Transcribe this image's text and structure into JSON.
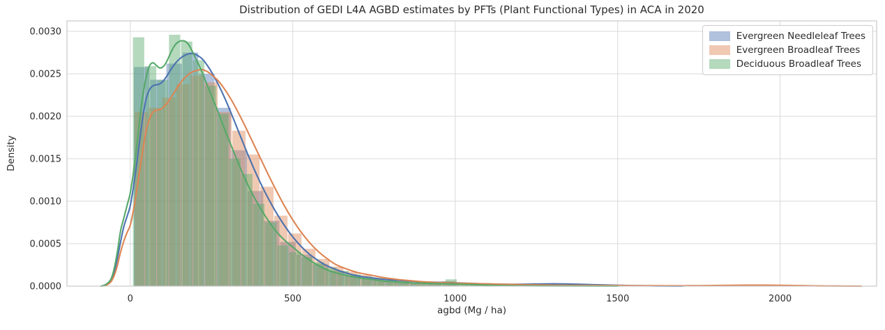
{
  "chart_data": {
    "type": "histogram+kde",
    "title": "Distribution of GEDI L4A AGBD estimates by PFTs (Plant Functional Types) in ACA in 2020",
    "xlabel": "agbd (Mg / ha)",
    "ylabel": "Density",
    "xlim": [
      -195,
      2297
    ],
    "ylim": [
      0,
      0.003123
    ],
    "xticks": [
      0,
      500,
      1000,
      1500,
      2000
    ],
    "xtick_labels": [
      "0",
      "500",
      "1000",
      "1500",
      "2000"
    ],
    "yticks": [
      0,
      0.0005,
      0.001,
      0.0015,
      0.002,
      0.0025,
      0.003
    ],
    "ytick_labels": [
      "0.0000",
      "0.0005",
      "0.0010",
      "0.0015",
      "0.0020",
      "0.0025",
      "0.0030"
    ],
    "grid": true,
    "grid_color": "#d9d9d9",
    "spine_color": "#c9c9c9",
    "text_color": "#2b2b2b",
    "legend_position": "upper right",
    "series": [
      {
        "name": "Evergreen Needleleaf Trees",
        "line_color": "#4c72b0",
        "fill_color": "rgba(76,114,176,0.44)",
        "bin_width": 50,
        "bars": [
          [
            10,
            0.00258
          ],
          [
            60,
            0.00243
          ],
          [
            110,
            0.00262
          ],
          [
            160,
            0.00275
          ],
          [
            210,
            0.0025
          ],
          [
            260,
            0.0021
          ],
          [
            310,
            0.0016
          ],
          [
            360,
            0.00112
          ],
          [
            410,
            0.00077
          ],
          [
            460,
            0.00052
          ],
          [
            510,
            0.00037
          ],
          [
            560,
            0.00026
          ],
          [
            610,
            0.00018
          ],
          [
            660,
            0.00013
          ],
          [
            710,
            9e-05
          ],
          [
            760,
            6.5e-05
          ],
          [
            810,
            5e-05
          ],
          [
            860,
            3.5e-05
          ],
          [
            910,
            2.5e-05
          ],
          [
            960,
            2e-05
          ]
        ],
        "kde": [
          [
            -90,
            0
          ],
          [
            -75,
            2e-05
          ],
          [
            -60,
            7e-05
          ],
          [
            -50,
            0.00016
          ],
          [
            -40,
            0.00032
          ],
          [
            -30,
            0.00052
          ],
          [
            -20,
            0.0007
          ],
          [
            -10,
            0.00082
          ],
          [
            0,
            0.00095
          ],
          [
            10,
            0.00118
          ],
          [
            20,
            0.00145
          ],
          [
            30,
            0.00175
          ],
          [
            40,
            0.00203
          ],
          [
            50,
            0.00222
          ],
          [
            60,
            0.00232
          ],
          [
            70,
            0.00236
          ],
          [
            80,
            0.00237
          ],
          [
            90,
            0.00238
          ],
          [
            100,
            0.00241
          ],
          [
            110,
            0.00246
          ],
          [
            120,
            0.00252
          ],
          [
            130,
            0.00258
          ],
          [
            140,
            0.00263
          ],
          [
            150,
            0.00267
          ],
          [
            160,
            0.0027
          ],
          [
            175,
            0.00273
          ],
          [
            190,
            0.00274
          ],
          [
            205,
            0.00272
          ],
          [
            220,
            0.00268
          ],
          [
            235,
            0.00261
          ],
          [
            250,
            0.00252
          ],
          [
            270,
            0.00238
          ],
          [
            290,
            0.00222
          ],
          [
            310,
            0.00204
          ],
          [
            330,
            0.00185
          ],
          [
            350,
            0.00166
          ],
          [
            375,
            0.00143
          ],
          [
            400,
            0.00122
          ],
          [
            425,
            0.00103
          ],
          [
            450,
            0.00086
          ],
          [
            475,
            0.00071
          ],
          [
            500,
            0.00058
          ],
          [
            525,
            0.00047
          ],
          [
            550,
            0.00038
          ],
          [
            575,
            0.00031
          ],
          [
            600,
            0.00025
          ],
          [
            630,
            0.0002
          ],
          [
            660,
            0.00016
          ],
          [
            700,
            0.00012
          ],
          [
            740,
            0.0001
          ],
          [
            780,
            8e-05
          ],
          [
            820,
            7e-05
          ],
          [
            860,
            6e-05
          ],
          [
            900,
            5e-05
          ],
          [
            950,
            4.5e-05
          ],
          [
            1000,
            4e-05
          ],
          [
            1050,
            3.2e-05
          ],
          [
            1100,
            2.6e-05
          ],
          [
            1150,
            2.2e-05
          ],
          [
            1200,
            2.2e-05
          ],
          [
            1250,
            2.5e-05
          ],
          [
            1300,
            2.7e-05
          ],
          [
            1350,
            2.5e-05
          ],
          [
            1400,
            2e-05
          ],
          [
            1450,
            1.5e-05
          ],
          [
            1500,
            1e-05
          ],
          [
            1550,
            6e-06
          ],
          [
            1600,
            3e-06
          ],
          [
            1650,
            1e-06
          ],
          [
            1700,
            0
          ]
        ]
      },
      {
        "name": "Evergreen Broadleaf Trees",
        "line_color": "#dd8452",
        "fill_color": "rgba(221,132,82,0.44)",
        "bin_width": 43,
        "bars": [
          [
            12,
            0.00205
          ],
          [
            55,
            0.0021
          ],
          [
            98,
            0.00222
          ],
          [
            141,
            0.00238
          ],
          [
            184,
            0.00248
          ],
          [
            227,
            0.0024
          ],
          [
            270,
            0.00205
          ],
          [
            313,
            0.00183
          ],
          [
            356,
            0.00155
          ],
          [
            399,
            0.00117
          ],
          [
            442,
            0.00083
          ],
          [
            485,
            0.00062
          ],
          [
            528,
            0.00044
          ],
          [
            571,
            0.00032
          ],
          [
            614,
            0.00023
          ],
          [
            657,
            0.00017
          ],
          [
            700,
            0.00013
          ],
          [
            743,
            0.0001
          ],
          [
            786,
            8e-05
          ],
          [
            829,
            6e-05
          ],
          [
            872,
            5e-05
          ],
          [
            915,
            4e-05
          ],
          [
            958,
            6e-05
          ],
          [
            1001,
            3e-05
          ],
          [
            1044,
            2e-05
          ],
          [
            1087,
            1.5e-05
          ],
          [
            1896,
            1.5e-05
          ],
          [
            1939,
            1e-05
          ]
        ],
        "kde": [
          [
            -90,
            0
          ],
          [
            -75,
            1e-05
          ],
          [
            -60,
            5e-05
          ],
          [
            -50,
            0.00012
          ],
          [
            -40,
            0.00024
          ],
          [
            -30,
            0.0004
          ],
          [
            -20,
            0.00053
          ],
          [
            -10,
            0.00063
          ],
          [
            0,
            0.00072
          ],
          [
            10,
            0.0009
          ],
          [
            20,
            0.00113
          ],
          [
            30,
            0.00139
          ],
          [
            40,
            0.00164
          ],
          [
            50,
            0.00185
          ],
          [
            60,
            0.00198
          ],
          [
            70,
            0.00205
          ],
          [
            80,
            0.00207
          ],
          [
            90,
            0.00208
          ],
          [
            100,
            0.0021
          ],
          [
            110,
            0.00214
          ],
          [
            120,
            0.00219
          ],
          [
            130,
            0.00225
          ],
          [
            140,
            0.00231
          ],
          [
            150,
            0.00237
          ],
          [
            160,
            0.00242
          ],
          [
            175,
            0.00248
          ],
          [
            190,
            0.00252
          ],
          [
            205,
            0.00254
          ],
          [
            220,
            0.00255
          ],
          [
            235,
            0.00253
          ],
          [
            250,
            0.00249
          ],
          [
            270,
            0.00242
          ],
          [
            290,
            0.00232
          ],
          [
            310,
            0.0022
          ],
          [
            330,
            0.00206
          ],
          [
            350,
            0.00191
          ],
          [
            375,
            0.00171
          ],
          [
            400,
            0.00151
          ],
          [
            425,
            0.00131
          ],
          [
            450,
            0.00112
          ],
          [
            475,
            0.00094
          ],
          [
            500,
            0.00078
          ],
          [
            525,
            0.00064
          ],
          [
            550,
            0.00052
          ],
          [
            575,
            0.00042
          ],
          [
            600,
            0.00034
          ],
          [
            630,
            0.00026
          ],
          [
            660,
            0.00021
          ],
          [
            700,
            0.00016
          ],
          [
            740,
            0.00013
          ],
          [
            780,
            0.0001
          ],
          [
            820,
            8e-05
          ],
          [
            860,
            6.5e-05
          ],
          [
            900,
            5.2e-05
          ],
          [
            950,
            4.2e-05
          ],
          [
            1000,
            3.7e-05
          ],
          [
            1050,
            3.1e-05
          ],
          [
            1100,
            2.6e-05
          ],
          [
            1150,
            2.2e-05
          ],
          [
            1200,
            1.8e-05
          ],
          [
            1250,
            1.5e-05
          ],
          [
            1300,
            1.2e-05
          ],
          [
            1350,
            1e-05
          ],
          [
            1400,
            9e-06
          ],
          [
            1450,
            8e-06
          ],
          [
            1500,
            7e-06
          ],
          [
            1550,
            6e-06
          ],
          [
            1600,
            6e-06
          ],
          [
            1650,
            5e-06
          ],
          [
            1700,
            5e-06
          ],
          [
            1750,
            6e-06
          ],
          [
            1800,
            8e-06
          ],
          [
            1850,
            1e-05
          ],
          [
            1900,
            1.2e-05
          ],
          [
            1950,
            1.2e-05
          ],
          [
            2000,
            1e-05
          ],
          [
            2050,
            7e-06
          ],
          [
            2100,
            4e-06
          ],
          [
            2150,
            2e-06
          ],
          [
            2200,
            1e-06
          ],
          [
            2250,
            0
          ]
        ]
      },
      {
        "name": "Deciduous Broadleaf Trees",
        "line_color": "#55a868",
        "fill_color": "rgba(85,168,104,0.44)",
        "bin_width": 37,
        "bars": [
          [
            7,
            0.00293
          ],
          [
            44,
            0.00259
          ],
          [
            81,
            0.00243
          ],
          [
            118,
            0.00296
          ],
          [
            155,
            0.00288
          ],
          [
            192,
            0.00266
          ],
          [
            229,
            0.00236
          ],
          [
            266,
            0.00203
          ],
          [
            303,
            0.0015
          ],
          [
            340,
            0.00132
          ],
          [
            377,
            0.00097
          ],
          [
            414,
            0.00075
          ],
          [
            451,
            0.00048
          ],
          [
            488,
            0.0004
          ],
          [
            525,
            0.00034
          ],
          [
            562,
            0.00028
          ],
          [
            599,
            0.00022
          ],
          [
            636,
            0.00018
          ],
          [
            673,
            0.00014
          ],
          [
            710,
            0.00011
          ],
          [
            747,
            9e-05
          ],
          [
            784,
            7e-05
          ],
          [
            821,
            5.5e-05
          ],
          [
            858,
            4.5e-05
          ],
          [
            895,
            3.5e-05
          ],
          [
            932,
            5e-05
          ],
          [
            969,
            8e-05
          ],
          [
            1006,
            3e-05
          ],
          [
            1043,
            2e-05
          ]
        ],
        "kde": [
          [
            -90,
            0
          ],
          [
            -75,
            2e-05
          ],
          [
            -60,
            8e-05
          ],
          [
            -50,
            0.0002
          ],
          [
            -40,
            0.0004
          ],
          [
            -30,
            0.00065
          ],
          [
            -20,
            0.0008
          ],
          [
            -10,
            0.00095
          ],
          [
            0,
            0.0011
          ],
          [
            10,
            0.00135
          ],
          [
            20,
            0.00165
          ],
          [
            30,
            0.002
          ],
          [
            40,
            0.00228
          ],
          [
            50,
            0.00248
          ],
          [
            60,
            0.0026
          ],
          [
            70,
            0.00263
          ],
          [
            80,
            0.0026
          ],
          [
            90,
            0.00257
          ],
          [
            100,
            0.00258
          ],
          [
            110,
            0.00263
          ],
          [
            120,
            0.00271
          ],
          [
            130,
            0.00279
          ],
          [
            140,
            0.00285
          ],
          [
            150,
            0.00288
          ],
          [
            160,
            0.00289
          ],
          [
            170,
            0.00288
          ],
          [
            180,
            0.00284
          ],
          [
            190,
            0.00277
          ],
          [
            200,
            0.00269
          ],
          [
            215,
            0.00257
          ],
          [
            230,
            0.00243
          ],
          [
            250,
            0.00224
          ],
          [
            270,
            0.00205
          ],
          [
            290,
            0.00185
          ],
          [
            310,
            0.00166
          ],
          [
            330,
            0.00147
          ],
          [
            350,
            0.00129
          ],
          [
            375,
            0.00109
          ],
          [
            400,
            0.00092
          ],
          [
            425,
            0.00077
          ],
          [
            450,
            0.00064
          ],
          [
            475,
            0.00054
          ],
          [
            500,
            0.00046
          ],
          [
            525,
            0.00038
          ],
          [
            550,
            0.00031
          ],
          [
            575,
            0.00025
          ],
          [
            600,
            0.0002
          ],
          [
            630,
            0.00016
          ],
          [
            660,
            0.00013
          ],
          [
            700,
            0.0001
          ],
          [
            740,
            8e-05
          ],
          [
            780,
            6e-05
          ],
          [
            820,
            5e-05
          ],
          [
            860,
            4e-05
          ],
          [
            900,
            3.5e-05
          ],
          [
            950,
            3e-05
          ],
          [
            1000,
            2.5e-05
          ],
          [
            1050,
            1.8e-05
          ],
          [
            1100,
            1.2e-05
          ],
          [
            1150,
            7e-06
          ],
          [
            1200,
            4e-06
          ],
          [
            1300,
            2e-06
          ],
          [
            1400,
            1e-06
          ],
          [
            1500,
            0
          ]
        ]
      }
    ]
  }
}
